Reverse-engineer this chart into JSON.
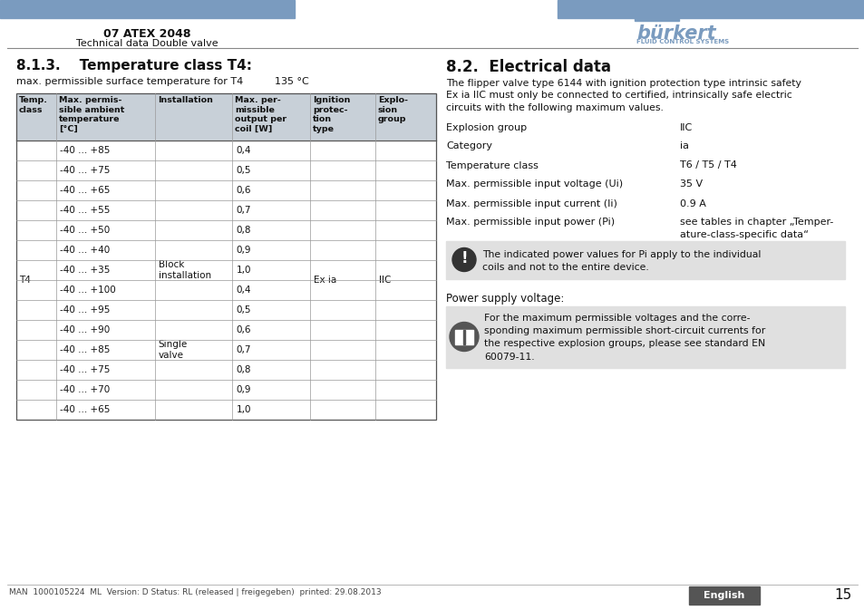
{
  "page_bg": "#ffffff",
  "header_bar_color": "#7a9bbf",
  "header_title": "07 ATEX 2048",
  "header_subtitle": "Technical data Double valve",
  "footer_text": "MAN  1000105224  ML  Version: D Status: RL (released | freigegeben)  printed: 29.08.2013",
  "footer_lang": "English",
  "footer_page": "15",
  "footer_lang_bg": "#5a5a5a",
  "section_left_title": "8.1.3.    Temperature class T4:",
  "section_right_title": "8.2.  Electrical data",
  "temp_subtitle": "max. permissible surface temperature for T4",
  "temp_value": "135 °C",
  "table_header_cols": [
    "Temp.\nclass",
    "Max. permis-\nsible ambient\ntemperature\n[°C]",
    "Installation",
    "Max. per-\nmissible\noutput per\ncoil [W]",
    "Ignition\nprotec-\ntion\ntype",
    "Explo-\nsion\ngroup"
  ],
  "table_rows": [
    [
      "-40 ... +85",
      "",
      "0,4",
      "",
      ""
    ],
    [
      "-40 ... +75",
      "",
      "0,5",
      "",
      ""
    ],
    [
      "-40 ... +65",
      "",
      "0,6",
      "",
      ""
    ],
    [
      "-40 ... +55",
      "Block\ninstallation",
      "0,7",
      "",
      ""
    ],
    [
      "-40 ... +50",
      "",
      "0,8",
      "",
      ""
    ],
    [
      "-40 ... +40",
      "",
      "0,9",
      "",
      ""
    ],
    [
      "-40 ... +35",
      "",
      "1,0",
      "Ex ia",
      "IIC"
    ],
    [
      "-40 ... +100",
      "",
      "0,4",
      "",
      ""
    ],
    [
      "-40 ... +95",
      "",
      "0,5",
      "",
      ""
    ],
    [
      "-40 ... +90",
      "",
      "0,6",
      "",
      ""
    ],
    [
      "-40 ... +85",
      "Single\nvalve",
      "0,7",
      "",
      ""
    ],
    [
      "-40 ... +75",
      "",
      "0,8",
      "",
      ""
    ],
    [
      "-40 ... +70",
      "",
      "0,9",
      "",
      ""
    ],
    [
      "-40 ... +65",
      "",
      "1,0",
      "",
      ""
    ]
  ],
  "right_intro": "The flipper valve type 6144 with ignition protection type intrinsic safety\nEx ia IIC must only be connected to certified, intrinsically safe electric\ncircuits with the following maximum values.",
  "right_specs": [
    [
      "Explosion group",
      "IIC"
    ],
    [
      "Category",
      "ia"
    ],
    [
      "Temperature class",
      "T6 / T5 / T4"
    ],
    [
      "Max. permissible input voltage (Ui)",
      "35 V"
    ],
    [
      "Max. permissible input current (Ii)",
      "0.9 A"
    ],
    [
      "Max. permissible input power (Pi)",
      "see tables in chapter „Temper-\nature-class-specific data“"
    ]
  ],
  "note1_text": "The indicated power values for Pi apply to the individual\ncoils and not to the entire device.",
  "power_supply_label": "Power supply voltage:",
  "note2_text": "For the maximum permissible voltages and the corre-\nsponding maximum permissible short-circuit currents for\nthe respective explosion groups, please see standard EN\n60079-11.",
  "note_bg": "#e0e0e0",
  "table_header_bg": "#c8d0d8",
  "burkert_color": "#7a9bbf"
}
